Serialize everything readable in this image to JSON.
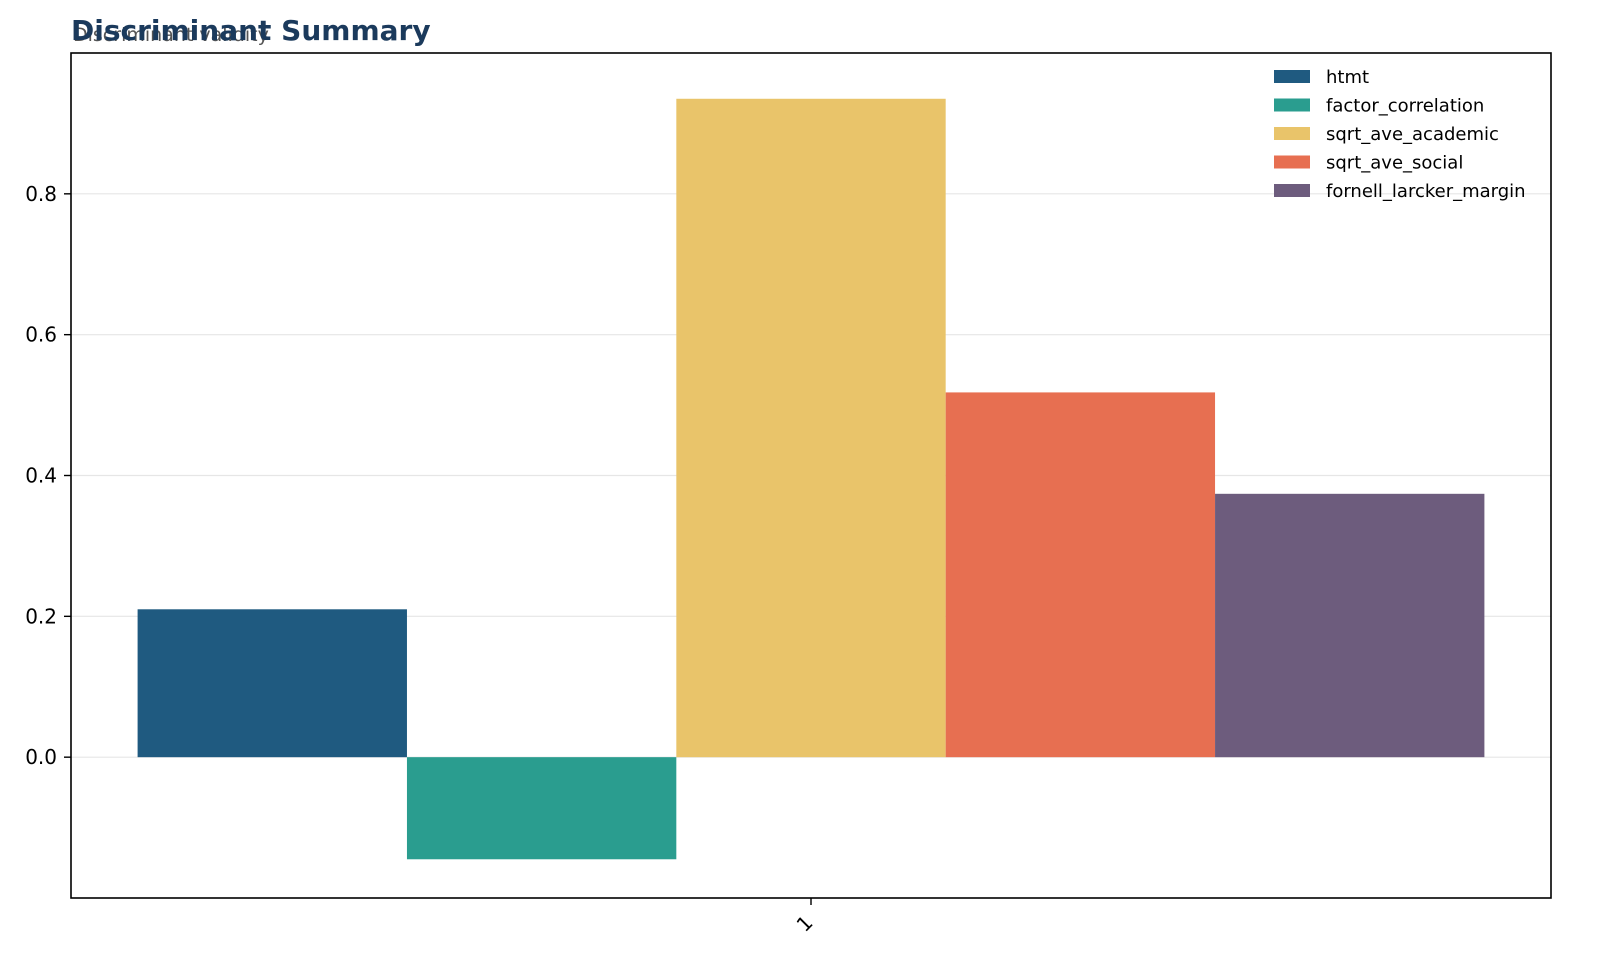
{
  "chart_data": {
    "type": "bar",
    "title": "Discriminant Summary",
    "subtitle": "Discriminant validity",
    "xlabel": "",
    "ylabel": "",
    "categories": [
      "1"
    ],
    "series": [
      {
        "name": "htmt",
        "values": [
          0.21
        ],
        "color": "#1f5a80"
      },
      {
        "name": "factor_correlation",
        "values": [
          -0.145
        ],
        "color": "#2a9d8f"
      },
      {
        "name": "sqrt_ave_academic",
        "values": [
          0.935
        ],
        "color": "#e9c46a"
      },
      {
        "name": "sqrt_ave_social",
        "values": [
          0.518
        ],
        "color": "#e76f51"
      },
      {
        "name": "fornell_larcker_margin",
        "values": [
          0.374
        ],
        "color": "#6d5c7d"
      }
    ],
    "ylim": [
      -0.2,
      1.0
    ],
    "yticks": [
      0.0,
      0.2,
      0.4,
      0.6,
      0.8
    ],
    "ytick_labels": [
      "0.0",
      "0.2",
      "0.4",
      "0.6",
      "0.8"
    ],
    "grid": true,
    "legend_position": "top-right",
    "colors": {
      "title": "#1b3a5c",
      "subtitle": "#555555",
      "grid": "#e6e6e6",
      "axis": "#000000"
    }
  }
}
